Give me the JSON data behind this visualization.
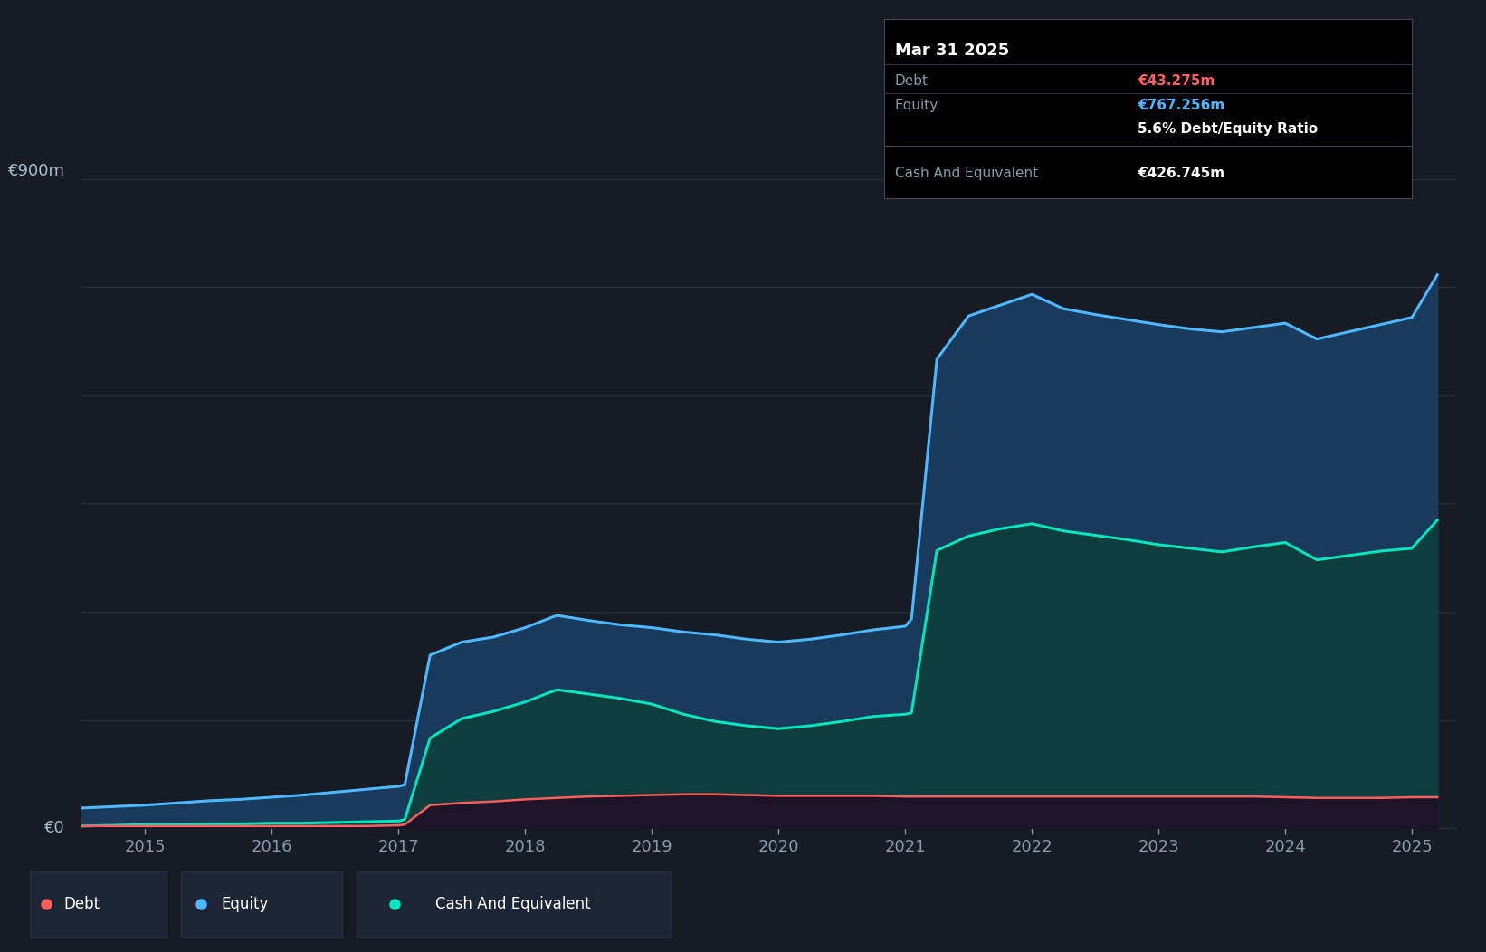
{
  "background_color": "#161b24",
  "plot_bg_color": "#161b24",
  "grid_color": "#2a3040",
  "tooltip": {
    "date": "Mar 31 2025",
    "debt_label": "Debt",
    "debt_value": "€43.275m",
    "equity_label": "Equity",
    "equity_value": "€767.256m",
    "ratio_text": "5.6% Debt/Equity Ratio",
    "cash_label": "Cash And Equivalent",
    "cash_value": "€426.745m"
  },
  "debt_color": "#ff5e5e",
  "equity_color": "#4db8ff",
  "cash_color": "#00e5be",
  "equity_fill_color": "#1a3a5c",
  "cash_fill_color": "#0d3d3d",
  "debt_fill_color": "#2a1a2e",
  "legend": [
    "Debt",
    "Equity",
    "Cash And Equivalent"
  ],
  "x_labels": [
    "2015",
    "2016",
    "2017",
    "2018",
    "2019",
    "2020",
    "2021",
    "2022",
    "2023",
    "2024",
    "2025"
  ],
  "dates": [
    2014.5,
    2014.75,
    2015.0,
    2015.25,
    2015.5,
    2015.75,
    2016.0,
    2016.25,
    2016.5,
    2016.75,
    2017.0,
    2017.05,
    2017.25,
    2017.5,
    2017.75,
    2018.0,
    2018.25,
    2018.5,
    2018.75,
    2019.0,
    2019.25,
    2019.5,
    2019.75,
    2020.0,
    2020.25,
    2020.5,
    2020.75,
    2021.0,
    2021.05,
    2021.25,
    2021.5,
    2021.75,
    2022.0,
    2022.25,
    2022.5,
    2022.75,
    2023.0,
    2023.25,
    2023.5,
    2023.75,
    2024.0,
    2024.25,
    2024.5,
    2024.75,
    2025.0,
    2025.2
  ],
  "equity": [
    28,
    30,
    32,
    35,
    38,
    40,
    43,
    46,
    50,
    54,
    58,
    60,
    240,
    258,
    265,
    278,
    295,
    288,
    282,
    278,
    272,
    268,
    262,
    258,
    262,
    268,
    275,
    280,
    290,
    650,
    710,
    725,
    740,
    720,
    712,
    705,
    698,
    692,
    688,
    694,
    700,
    678,
    688,
    698,
    708,
    767
  ],
  "cash": [
    3,
    4,
    5,
    5,
    6,
    6,
    7,
    7,
    8,
    9,
    10,
    12,
    125,
    152,
    162,
    175,
    192,
    186,
    180,
    172,
    158,
    148,
    142,
    138,
    142,
    148,
    155,
    158,
    160,
    385,
    405,
    415,
    422,
    412,
    406,
    400,
    393,
    388,
    383,
    390,
    396,
    372,
    378,
    384,
    388,
    427
  ],
  "debt": [
    3,
    3,
    3,
    3,
    3,
    3,
    3,
    3,
    3,
    3,
    4,
    5,
    32,
    35,
    37,
    40,
    42,
    44,
    45,
    46,
    47,
    47,
    46,
    45,
    45,
    45,
    45,
    44,
    44,
    44,
    44,
    44,
    44,
    44,
    44,
    44,
    44,
    44,
    44,
    44,
    43,
    42,
    42,
    42,
    43,
    43
  ],
  "ylim": [
    0,
    950
  ],
  "xlim_start": 2014.5,
  "xlim_end": 2025.35
}
